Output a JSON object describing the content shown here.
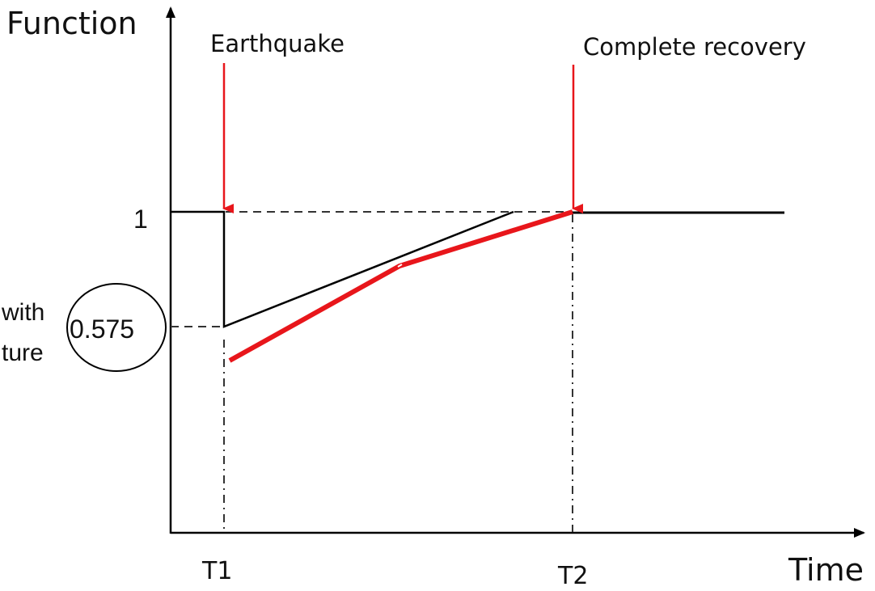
{
  "axes": {
    "y_label": "Function",
    "x_label": "Time"
  },
  "ticks": {
    "y_one": "1",
    "y_value": "0.575",
    "t1": "T1",
    "t2": "T2"
  },
  "annotations": {
    "earthquake": "Earthquake",
    "recovery": "Complete recovery",
    "left_line1": "with",
    "left_line2": "ture"
  },
  "colors": {
    "axis": "#000000",
    "baseline": "#000000",
    "red_curve": "#e8161b",
    "arrow": "#e8161b",
    "guide": "#333333"
  }
}
